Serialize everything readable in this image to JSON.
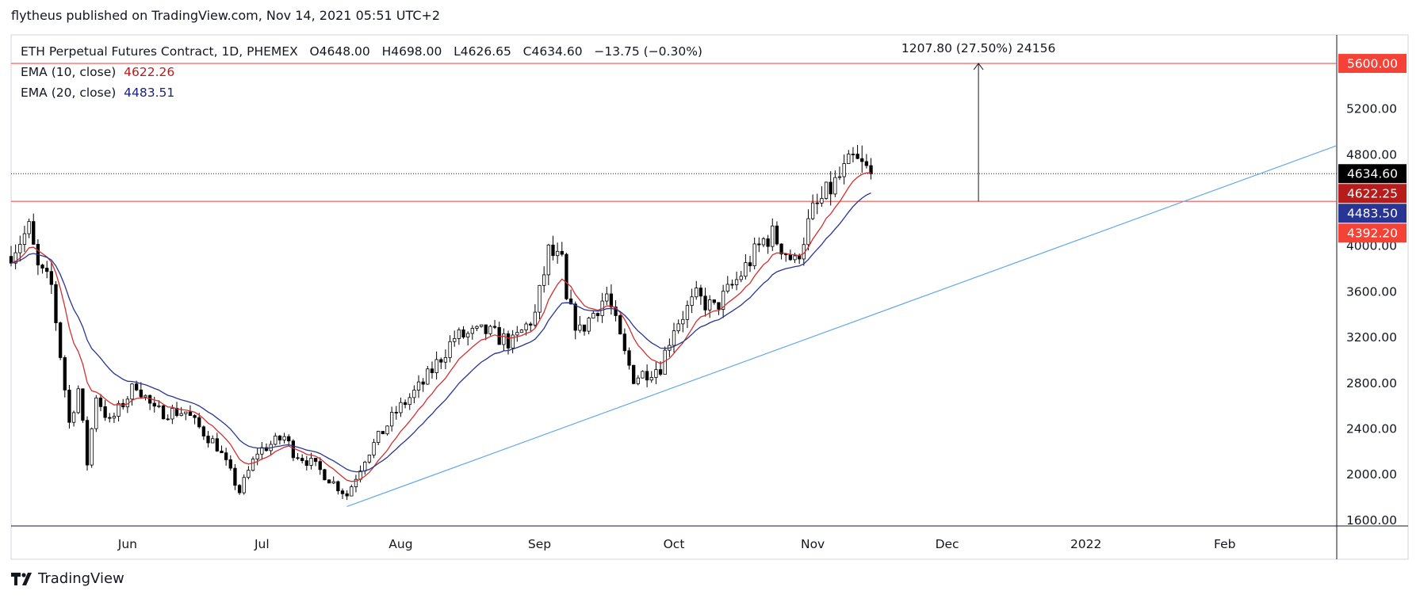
{
  "header": {
    "published": "flytheus published on TradingView.com, Nov 14, 2021 05:51 UTC+2"
  },
  "legend": {
    "symbol": "ETH Perpetual Futures Contract, 1D, PHEMEX",
    "open_label": "O",
    "open": "4648.00",
    "high_label": "H",
    "high": "4698.00",
    "low_label": "L",
    "low": "4626.65",
    "close_label": "C",
    "close": "4634.60",
    "change": "−13.75 (−0.30%)",
    "ema10_label": "EMA (10, close)",
    "ema10_value": "4622.26",
    "ema20_label": "EMA (20, close)",
    "ema20_value": "4483.51"
  },
  "logo": {
    "text": "TradingView"
  },
  "colors": {
    "up_candle": "#ffffff",
    "down_candle": "#000000",
    "wick": "#000000",
    "ema10": "#d32f2f",
    "ema20": "#283593",
    "hline": "#ef5350",
    "trendline": "#64a8e6",
    "last_price_bg": "#000000",
    "ema10_bg": "#b71c1c",
    "ema20_bg": "#283593",
    "level_bg": "#f44336"
  },
  "chart_data": {
    "type": "candlestick",
    "y_axis": {
      "ticks": [
        1600,
        2000,
        2400,
        2800,
        3200,
        3600,
        4000,
        4800,
        5200
      ],
      "tick_labels": [
        "1600.00",
        "2000.00",
        "2400.00",
        "2800.00",
        "3200.00",
        "3600.00",
        "4000.00",
        "4800.00",
        "5200.00"
      ],
      "range": [
        1550,
        5850
      ]
    },
    "x_axis": {
      "tick_labels": [
        "Jun",
        "Jul",
        "Aug",
        "Sep",
        "Oct",
        "Nov",
        "Dec",
        "2022",
        "Feb"
      ],
      "tick_dates": [
        "2021-06-01",
        "2021-07-01",
        "2021-08-01",
        "2021-09-01",
        "2021-10-01",
        "2021-11-01",
        "2021-12-01",
        "2022-01-01",
        "2022-02-01"
      ],
      "range": [
        "2021-05-06",
        "2022-02-26"
      ]
    },
    "price_labels": [
      {
        "key": "resistance",
        "text": "5600.00",
        "value": 5600
      },
      {
        "key": "last",
        "text": "4634.60",
        "value": 4634.6
      },
      {
        "key": "ema10",
        "text": "4622.25",
        "value": 4622.25
      },
      {
        "key": "ema20",
        "text": "4483.50",
        "value": 4483.5
      },
      {
        "key": "support",
        "text": "4392.20",
        "value": 4392.2
      }
    ],
    "horizontal_lines": [
      {
        "name": "resistance",
        "value": 5600
      },
      {
        "name": "support",
        "value": 4392.2
      }
    ],
    "last_price_line": 4634.6,
    "trendline": {
      "from": [
        "2021-07-20",
        1720
      ],
      "to": [
        "2022-02-26",
        4880
      ]
    },
    "measure": {
      "label": "1207.80 (27.50%) 24156",
      "date": "2021-12-08",
      "from_value": 4392.2,
      "to_value": 5600
    },
    "anchors": [
      [
        "2021-05-06",
        3950
      ],
      [
        "2021-05-10",
        4150
      ],
      [
        "2021-05-12",
        3800
      ],
      [
        "2021-05-15",
        3650
      ],
      [
        "2021-05-19",
        2450
      ],
      [
        "2021-05-21",
        2750
      ],
      [
        "2021-05-23",
        2100
      ],
      [
        "2021-05-25",
        2700
      ],
      [
        "2021-05-28",
        2450
      ],
      [
        "2021-06-03",
        2800
      ],
      [
        "2021-06-07",
        2550
      ],
      [
        "2021-06-14",
        2550
      ],
      [
        "2021-06-16",
        2450
      ],
      [
        "2021-06-21",
        2250
      ],
      [
        "2021-06-26",
        1850
      ],
      [
        "2021-06-30",
        2200
      ],
      [
        "2021-07-06",
        2330
      ],
      [
        "2021-07-08",
        2200
      ],
      [
        "2021-07-12",
        2100
      ],
      [
        "2021-07-15",
        2000
      ],
      [
        "2021-07-20",
        1820
      ],
      [
        "2021-07-24",
        2150
      ],
      [
        "2021-07-31",
        2550
      ],
      [
        "2021-08-06",
        2800
      ],
      [
        "2021-08-13",
        3200
      ],
      [
        "2021-08-20",
        3250
      ],
      [
        "2021-08-26",
        3150
      ],
      [
        "2021-08-31",
        3400
      ],
      [
        "2021-09-03",
        3950
      ],
      [
        "2021-09-06",
        3850
      ],
      [
        "2021-09-07",
        3500
      ],
      [
        "2021-09-10",
        3250
      ],
      [
        "2021-09-16",
        3580
      ],
      [
        "2021-09-20",
        3050
      ],
      [
        "2021-09-22",
        2850
      ],
      [
        "2021-09-28",
        2950
      ],
      [
        "2021-10-01",
        3300
      ],
      [
        "2021-10-06",
        3550
      ],
      [
        "2021-10-10",
        3450
      ],
      [
        "2021-10-15",
        3700
      ],
      [
        "2021-10-21",
        4050
      ],
      [
        "2021-10-23",
        4100
      ],
      [
        "2021-10-28",
        3850
      ],
      [
        "2021-11-01",
        4300
      ],
      [
        "2021-11-05",
        4500
      ],
      [
        "2021-11-08",
        4650
      ],
      [
        "2021-11-10",
        4750
      ],
      [
        "2021-11-14",
        4634.6
      ]
    ],
    "series": [
      {
        "name": "EMA (10, close)",
        "last": 4622.26
      },
      {
        "name": "EMA (20, close)",
        "last": 4483.51
      }
    ]
  }
}
